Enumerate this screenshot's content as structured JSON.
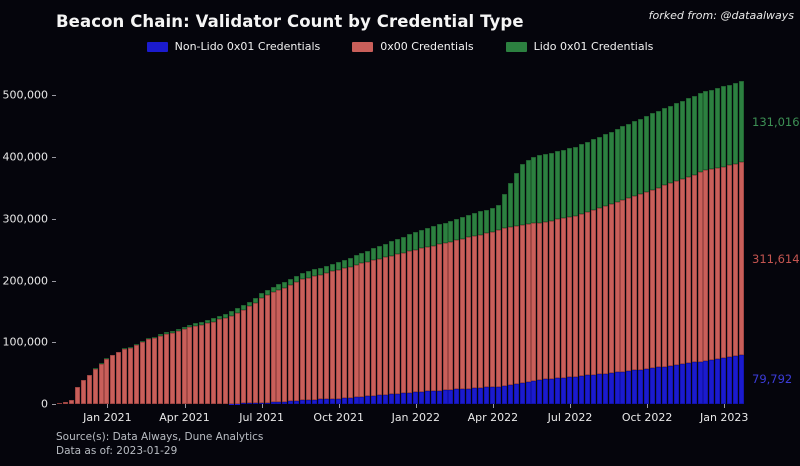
{
  "header": {
    "title": "Beacon Chain: Validator Count by Credential Type",
    "attribution": "forked from: @dataalways"
  },
  "colors": {
    "background": "#05050c",
    "non_lido_0x01_blue": "#1b1bce",
    "credentials_0x00_red": "#c95f5a",
    "lido_0x01_green": "#2c8040"
  },
  "legend": [
    {
      "label": "Non-Lido 0x01 Credentials",
      "color": "#1b1bce"
    },
    {
      "label": "0x00 Credentials",
      "color": "#c95f5a"
    },
    {
      "label": "Lido 0x01 Credentials",
      "color": "#2c8040"
    }
  ],
  "annotations": [
    {
      "text": "79,792",
      "color": "#3c3cd9"
    },
    {
      "text": "311,614",
      "color": "#c45550"
    },
    {
      "text": "131,016",
      "color": "#3d9155"
    }
  ],
  "footer": {
    "source": "Source(s): Data Always, Dune Analytics",
    "as_of": "Data as of: 2023-01-29"
  },
  "chart_data": {
    "type": "bar",
    "stacked": true,
    "bar_interval": "weekly",
    "title": "Beacon Chain: Validator Count by Credential Type",
    "xlabel": "",
    "ylabel": "",
    "grid": false,
    "legend_position": "top-center",
    "ylim": [
      0,
      528000
    ],
    "y_ticks": [
      {
        "value": 0,
        "label": "0"
      },
      {
        "value": 100000,
        "label": "100,000"
      },
      {
        "value": 200000,
        "label": "200,000"
      },
      {
        "value": 300000,
        "label": "300,000"
      },
      {
        "value": 400000,
        "label": "400,000"
      },
      {
        "value": 500000,
        "label": "500,000"
      }
    ],
    "x_ticks": [
      {
        "index": 8,
        "label": "Jan 2021"
      },
      {
        "index": 21,
        "label": "Apr 2021"
      },
      {
        "index": 34,
        "label": "Jul 2021"
      },
      {
        "index": 47,
        "label": "Oct 2021"
      },
      {
        "index": 60,
        "label": "Jan 2022"
      },
      {
        "index": 73,
        "label": "Apr 2022"
      },
      {
        "index": 86,
        "label": "Jul 2022"
      },
      {
        "index": 99,
        "label": "Oct 2022"
      },
      {
        "index": 112,
        "label": "Jan 2023"
      }
    ],
    "num_points": 116,
    "series": [
      {
        "name": "Non-Lido 0x01 Credentials",
        "key": "non-lido-0x01",
        "color": "#1b1bce",
        "edge": "#10109e",
        "final_value": 79792,
        "values": [
          0,
          0,
          0,
          0,
          0,
          0,
          0,
          0,
          0,
          0,
          0,
          0,
          0,
          0,
          0,
          0,
          0,
          0,
          0,
          0,
          0,
          0,
          0,
          0,
          0,
          0,
          0,
          0,
          0,
          400,
          700,
          1000,
          1200,
          1500,
          1800,
          2000,
          2600,
          3300,
          4000,
          4800,
          5600,
          6500,
          6800,
          7200,
          7500,
          7900,
          8200,
          8600,
          9000,
          9800,
          10700,
          11500,
          12400,
          13200,
          14100,
          14900,
          15800,
          16600,
          17500,
          18300,
          19200,
          20000,
          20600,
          21200,
          21800,
          22500,
          23100,
          23700,
          24300,
          24900,
          25500,
          26200,
          26800,
          27400,
          28000,
          29600,
          31100,
          32700,
          34300,
          35900,
          37400,
          39000,
          39800,
          40700,
          41500,
          42300,
          43200,
          44000,
          45100,
          46200,
          47200,
          48300,
          49400,
          50500,
          51500,
          52600,
          53700,
          54800,
          55800,
          56900,
          58000,
          59300,
          60700,
          62000,
          63300,
          64700,
          66000,
          67300,
          68700,
          70000,
          71300,
          72700,
          74000,
          76000,
          78000,
          79792
        ]
      },
      {
        "name": "0x00 Credentials",
        "key": "0x00-credentials",
        "color": "#c95f5a",
        "edge": "#8a3b39",
        "final_value": 311614,
        "values": [
          1900,
          3900,
          5900,
          27800,
          38700,
          46500,
          57400,
          65200,
          73100,
          79000,
          83800,
          88500,
          91300,
          96100,
          99800,
          104600,
          106400,
          110200,
          113900,
          114700,
          118500,
          121200,
          124000,
          126600,
          128200,
          130800,
          133500,
          137100,
          139700,
          142900,
          147200,
          151500,
          157000,
          162300,
          169600,
          174000,
          178200,
          181400,
          184500,
          187500,
          191600,
          195500,
          197800,
          199900,
          202200,
          204400,
          206700,
          208800,
          211000,
          212900,
          214700,
          216600,
          217400,
          219300,
          221100,
          222900,
          224700,
          225600,
          227400,
          229300,
          230100,
          232000,
          233600,
          235300,
          236900,
          238400,
          240100,
          241700,
          243300,
          244900,
          246600,
          248100,
          249700,
          251400,
          254000,
          255000,
          256000,
          256000,
          256000,
          256000,
          255000,
          254000,
          254900,
          255600,
          257500,
          258400,
          259100,
          261000,
          263000,
          265000,
          267000,
          269000,
          271000,
          273000,
          275000,
          278000,
          280000,
          282000,
          284000,
          287000,
          289000,
          291200,
          293400,
          295600,
          297800,
          300000,
          302200,
          304400,
          306600,
          308500,
          309300,
          310000,
          310600,
          311000,
          311300,
          311614
        ]
      },
      {
        "name": "Lido 0x01 Credentials",
        "key": "lido-0x01",
        "color": "#2c8040",
        "edge": "#1c5429",
        "final_value": 131016,
        "values": [
          100,
          100,
          100,
          200,
          300,
          500,
          600,
          800,
          900,
          1000,
          1200,
          1500,
          1700,
          1900,
          2200,
          2400,
          2600,
          2800,
          3100,
          3300,
          3500,
          3800,
          4000,
          4400,
          4800,
          5200,
          5500,
          5900,
          6300,
          6700,
          7100,
          7500,
          7800,
          8200,
          8600,
          9000,
          9200,
          9300,
          9500,
          9700,
          9800,
          10000,
          10400,
          10900,
          11300,
          11700,
          12100,
          12600,
          13000,
          14300,
          15600,
          16900,
          18200,
          19500,
          20800,
          22200,
          23500,
          24800,
          26100,
          27400,
          28700,
          30000,
          30800,
          31500,
          32300,
          33100,
          33800,
          34600,
          35400,
          36200,
          36900,
          37700,
          38500,
          39200,
          40000,
          55400,
          70900,
          85300,
          97700,
          104100,
          107600,
          110000,
          110300,
          110700,
          111000,
          111300,
          111700,
          112000,
          112900,
          113800,
          114800,
          115700,
          116600,
          117500,
          118500,
          119400,
          120300,
          121200,
          122200,
          123100,
          124000,
          124500,
          124900,
          125400,
          125900,
          126300,
          126800,
          127300,
          127700,
          128200,
          128800,
          129400,
          130000,
          130400,
          130700,
          131016
        ]
      }
    ]
  }
}
